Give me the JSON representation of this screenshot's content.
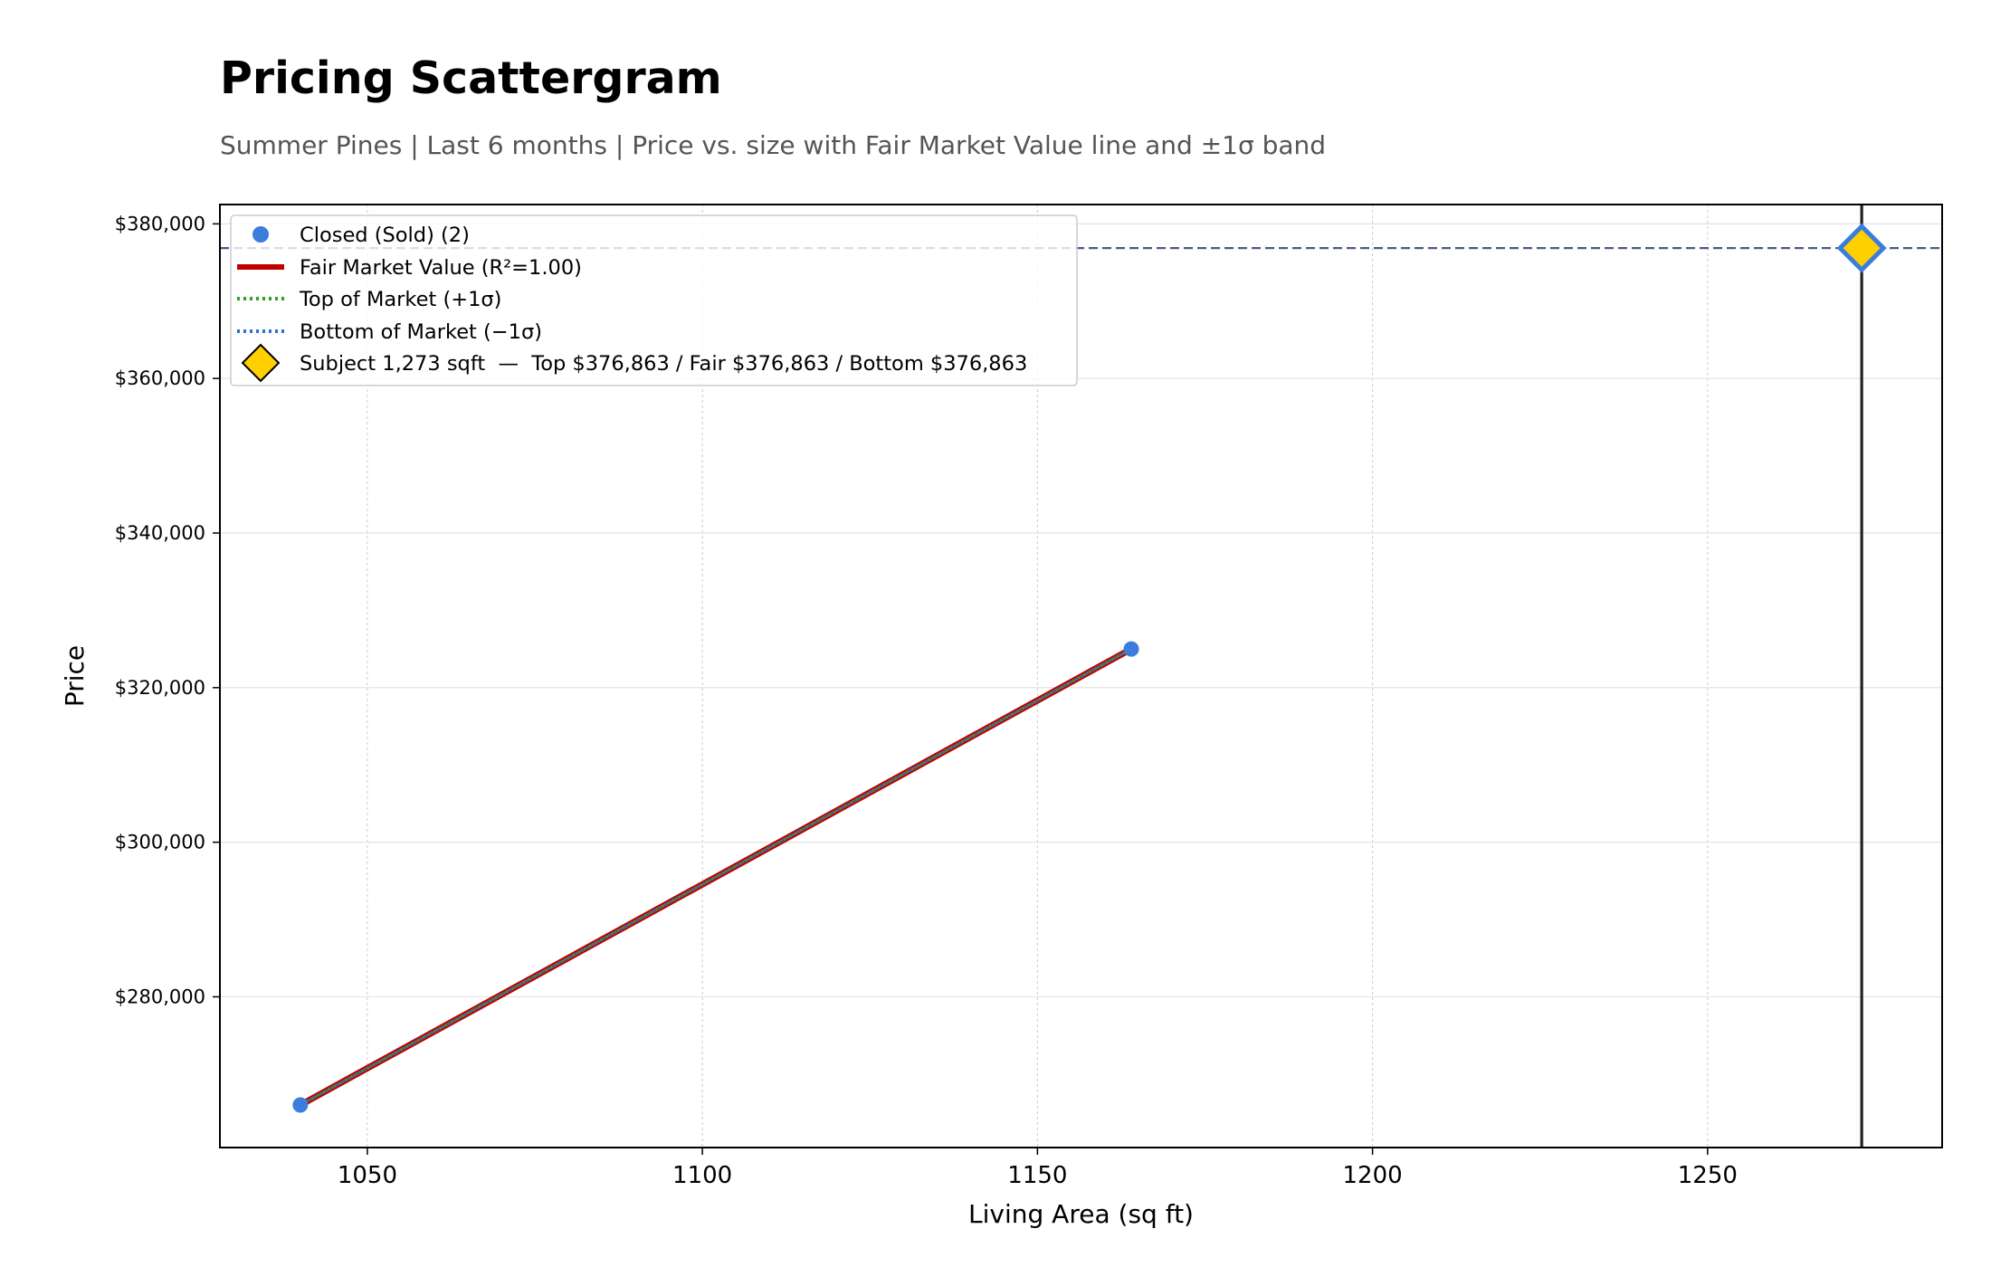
{
  "chart_data": {
    "type": "scatter",
    "title": "Pricing Scattergram",
    "subtitle": "Summer Pines  |  Last 6 months  |  Price vs. size with Fair Market Value line and ±1σ band",
    "xlabel": "Living Area (sq ft)",
    "ylabel": "Price",
    "xlim": [
      1028,
      1285
    ],
    "ylim": [
      260500,
      382500
    ],
    "x_ticks": [
      1050,
      1100,
      1150,
      1200,
      1250
    ],
    "x_tick_labels": [
      "1050",
      "1100",
      "1150",
      "1200",
      "1250"
    ],
    "y_ticks": [
      280000,
      300000,
      320000,
      340000,
      360000,
      380000
    ],
    "y_tick_labels": [
      "$280,000",
      "$300,000",
      "$320,000",
      "$340,000",
      "$360,000",
      "$380,000"
    ],
    "grid": true,
    "legend_position": "top-left",
    "series": [
      {
        "name": "Closed (Sold) (2)",
        "kind": "scatter",
        "color": "#3b7ddd",
        "points": [
          {
            "x": 1040,
            "y": 266000
          },
          {
            "x": 1164,
            "y": 325000
          }
        ]
      },
      {
        "name": "Fair Market Value (R²=1.00)",
        "kind": "line",
        "color": "#c00000",
        "points": [
          {
            "x": 1040,
            "y": 266000
          },
          {
            "x": 1164,
            "y": 325000
          }
        ]
      },
      {
        "name": "Top of Market (+1σ)",
        "kind": "line",
        "style": "dotted",
        "color": "#2ca02c",
        "points": [
          {
            "x": 1040,
            "y": 266000
          },
          {
            "x": 1164,
            "y": 325000
          }
        ]
      },
      {
        "name": "Bottom of Market (−1σ)",
        "kind": "line",
        "style": "dotted",
        "color": "#2f6fd6",
        "points": [
          {
            "x": 1040,
            "y": 266000
          },
          {
            "x": 1164,
            "y": 325000
          }
        ]
      }
    ],
    "subject": {
      "name": "Subject 1,273 sqft  —  Top $376,863 / Fair $376,863 / Bottom $376,863",
      "x": 1273,
      "y": 376863,
      "fill": "#ffd000",
      "edge": "#3b7ddd"
    },
    "reference_lines": {
      "vertical_x": 1273,
      "vertical_color": "#222222",
      "horizontal_y": 376863,
      "horizontal_color": "#4a5a8a"
    }
  }
}
